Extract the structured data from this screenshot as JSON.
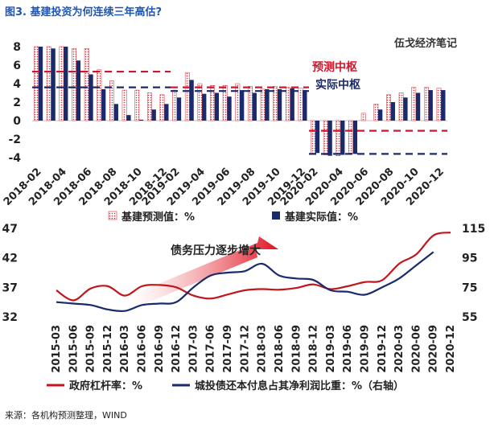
{
  "title": "图3. 基建投资为何连续三年高估?",
  "watermark": "伍戈经济笔记",
  "source": "来源：各机构预测整理，WIND",
  "chart_data": [
    {
      "type": "bar",
      "categories": [
        "2018-02",
        "2018-03",
        "2018-04",
        "2018-05",
        "2018-06",
        "2018-07",
        "2018-08",
        "2018-09",
        "2018-10",
        "2018-11",
        "2018-12",
        "2019-02",
        "2019-03",
        "2019-04",
        "2019-05",
        "2019-06",
        "2019-07",
        "2019-08",
        "2019-09",
        "2019-10",
        "2019-11",
        "2019-12",
        "2020-02",
        "2020-03",
        "2020-04",
        "2020-05",
        "2020-06",
        "2020-07",
        "2020-08",
        "2020-09",
        "2020-10",
        "2020-11",
        "2020-12"
      ],
      "tick_labels": [
        "2018-02",
        "2018-04",
        "2018-06",
        "2018-08",
        "2018-10",
        "2018-12",
        "2019-02",
        "2019-04",
        "2019-06",
        "2019-08",
        "2019-10",
        "2019-12",
        "2020-02",
        "2020-04",
        "2020-06",
        "2020-08",
        "2020-10",
        "2020-12"
      ],
      "series": [
        {
          "name": "基建预测值：%",
          "color": "#c0323a",
          "values": [
            8.0,
            8.0,
            8.0,
            7.8,
            7.8,
            5.5,
            4.3,
            3.3,
            3.3,
            3.0,
            2.8,
            3.3,
            5.2,
            4.0,
            3.8,
            3.8,
            4.0,
            3.7,
            3.4,
            3.7,
            3.6,
            3.5,
            -3.6,
            -3.7,
            -3.8,
            -3.5,
            0.8,
            1.8,
            2.8,
            3.0,
            3.6,
            3.6,
            3.5
          ]
        },
        {
          "name": "基建实际值：%",
          "color": "#1a2a6c",
          "values": [
            8.0,
            7.8,
            8.0,
            6.5,
            5.0,
            3.4,
            1.8,
            0.6,
            0.1,
            1.2,
            1.8,
            2.5,
            4.4,
            2.9,
            3.0,
            2.6,
            3.3,
            3.0,
            3.4,
            3.4,
            3.5,
            3.3,
            -3.5,
            -3.8,
            -3.7,
            -3.6,
            0.0,
            1.2,
            2.0,
            2.5,
            3.0,
            3.3,
            3.3
          ]
        }
      ],
      "reference_lines": [
        {
          "label": "预测中枢",
          "color": "#d0162c",
          "segments": [
            {
              "from": "2018-02",
              "to": "2018-12",
              "y": 5.3
            },
            {
              "from": "2019-02",
              "to": "2019-12",
              "y": 3.6
            },
            {
              "from": "2020-02",
              "to": "2020-12",
              "y": -1.1
            }
          ]
        },
        {
          "label": "实际中枢",
          "color": "#1a2a6c",
          "segments": [
            {
              "from": "2018-02",
              "to": "2018-12",
              "y": 3.6
            },
            {
              "from": "2019-02",
              "to": "2019-12",
              "y": 3.2
            },
            {
              "from": "2020-02",
              "to": "2020-12",
              "y": -3.6
            }
          ]
        }
      ],
      "y_ticks": [
        8,
        6,
        4,
        2,
        0,
        -2,
        -4
      ],
      "ylim": [
        -4,
        8
      ]
    },
    {
      "type": "line",
      "x": [
        "2015-03",
        "2015-06",
        "2015-09",
        "2015-12",
        "2016-03",
        "2016-06",
        "2016-09",
        "2016-12",
        "2017-03",
        "2017-06",
        "2017-09",
        "2017-12",
        "2018-03",
        "2018-06",
        "2018-09",
        "2018-12",
        "2019-03",
        "2019-06",
        "2019-09",
        "2019-12",
        "2020-03",
        "2020-06",
        "2020-09",
        "2020-12"
      ],
      "tick_labels": [
        "2015-03",
        "2015-06",
        "2015-09",
        "2015-12",
        "2016-03",
        "2016-06",
        "2016-09",
        "2016-12",
        "2017-03",
        "2017-06",
        "2017-09",
        "2017-12",
        "2018-03",
        "2018-06",
        "2018-09",
        "2018-12",
        "2019-03",
        "2019-06",
        "2019-09",
        "2019-12",
        "2020-03",
        "2020-06",
        "2020-09",
        "2020-12"
      ],
      "series": [
        {
          "name": "政府杠杆率：%",
          "axis": "left",
          "color": "#c0161c",
          "values": [
            36.5,
            34.8,
            36.8,
            37.2,
            35.6,
            37.2,
            37.4,
            37.0,
            35.6,
            35.1,
            35.8,
            36.5,
            36.7,
            36.6,
            36.9,
            37.5,
            36.7,
            37.2,
            37.9,
            38.2,
            41.0,
            42.6,
            45.8,
            46.3
          ]
        },
        {
          "name": "城投债还本付息占其净利润比重：%（右轴）",
          "axis": "right",
          "color": "#1a2a6c",
          "values": [
            65,
            64,
            63,
            60,
            59,
            63,
            64,
            65,
            75,
            83,
            85,
            86,
            91,
            83,
            81,
            80,
            73,
            72,
            70,
            75,
            81,
            90,
            99,
            null
          ]
        }
      ],
      "annotation": "债务压力逐步增大",
      "y_left": {
        "ticks": [
          47,
          42,
          37,
          32
        ],
        "lim": [
          32,
          47
        ]
      },
      "y_right": {
        "ticks": [
          115,
          95,
          75,
          55
        ],
        "lim": [
          55,
          115
        ]
      }
    }
  ]
}
